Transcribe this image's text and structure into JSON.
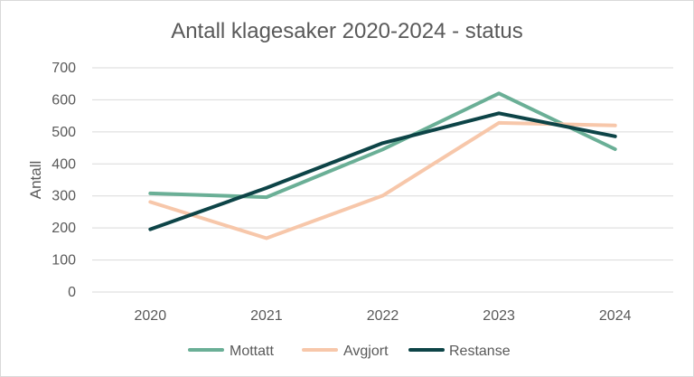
{
  "chart_data": {
    "type": "line",
    "title": "Antall klagesaker 2020-2024 - status",
    "xlabel": "",
    "ylabel": "Antall",
    "categories": [
      "2020",
      "2021",
      "2022",
      "2023",
      "2024"
    ],
    "ylim": [
      0,
      700
    ],
    "yticks": [
      0,
      100,
      200,
      300,
      400,
      500,
      600,
      700
    ],
    "grid": true,
    "legend": "bottom",
    "series": [
      {
        "name": "Mottatt",
        "color": "#6aaf96",
        "values": [
          308,
          296,
          445,
          620,
          446
        ]
      },
      {
        "name": "Avgjort",
        "color": "#f7c7aa",
        "values": [
          281,
          168,
          301,
          528,
          520
        ]
      },
      {
        "name": "Restanse",
        "color": "#0d4447",
        "values": [
          196,
          325,
          465,
          558,
          486
        ]
      }
    ]
  }
}
